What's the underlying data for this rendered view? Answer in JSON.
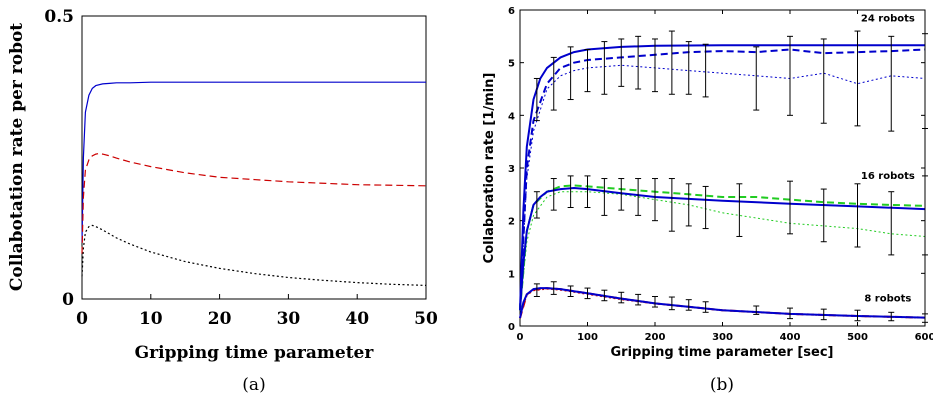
{
  "chart_data": [
    {
      "type": "line",
      "caption": "(a)",
      "xlabel": "Gripping time parameter",
      "ylabel": "Collabotation rate per robot",
      "xlim": [
        0,
        50
      ],
      "ylim": [
        0,
        0.5
      ],
      "xticks": [
        "0",
        "10",
        "20",
        "30",
        "40",
        "50"
      ],
      "yticks": [
        "0",
        "0.5"
      ],
      "grid": false,
      "series": [
        {
          "color": "#0000cc",
          "dash": "solid",
          "x": [
            0,
            0.2,
            0.5,
            1,
            1.5,
            2,
            3,
            4,
            5,
            7,
            10,
            20,
            30,
            40,
            50
          ],
          "y": [
            0.1,
            0.25,
            0.33,
            0.36,
            0.372,
            0.377,
            0.38,
            0.381,
            0.382,
            0.382,
            0.383,
            0.383,
            0.383,
            0.383,
            0.383
          ]
        },
        {
          "color": "#cc0000",
          "dash": "dashed",
          "x": [
            0,
            0.2,
            0.5,
            1,
            1.5,
            2,
            2.5,
            3,
            4,
            5,
            7,
            10,
            15,
            20,
            30,
            40,
            50
          ],
          "y": [
            0.08,
            0.18,
            0.228,
            0.246,
            0.253,
            0.256,
            0.257,
            0.256,
            0.253,
            0.249,
            0.242,
            0.234,
            0.223,
            0.215,
            0.207,
            0.202,
            0.2
          ]
        },
        {
          "color": "#000000",
          "dash": "dotted",
          "x": [
            0,
            0.2,
            0.5,
            1,
            1.5,
            2,
            3,
            4,
            5,
            7,
            10,
            15,
            20,
            25,
            30,
            35,
            40,
            45,
            50
          ],
          "y": [
            0.04,
            0.09,
            0.118,
            0.128,
            0.13,
            0.128,
            0.122,
            0.115,
            0.108,
            0.097,
            0.083,
            0.066,
            0.054,
            0.045,
            0.038,
            0.033,
            0.029,
            0.026,
            0.024
          ]
        }
      ]
    },
    {
      "type": "line",
      "caption": "(b)",
      "xlabel": "Gripping time parameter [sec]",
      "ylabel": "Collaboration rate [1/min]",
      "xlim": [
        0,
        600
      ],
      "ylim": [
        0,
        6
      ],
      "xticks": [
        "0",
        "100",
        "200",
        "300",
        "400",
        "500",
        "600"
      ],
      "yticks": [
        "0",
        "1",
        "2",
        "3",
        "4",
        "5",
        "6"
      ],
      "grid": false,
      "annotations": [
        "24 robots",
        "16 robots",
        "8 robots"
      ],
      "groups": [
        {
          "label": "24 robots",
          "model": {
            "color": "#0000cc",
            "x": [
              0,
              5,
              10,
              20,
              30,
              40,
              60,
              80,
              100,
              150,
              200,
              300,
              400,
              500,
              600
            ],
            "y": [
              0.3,
              2.2,
              3.4,
              4.3,
              4.7,
              4.9,
              5.1,
              5.2,
              5.25,
              5.3,
              5.32,
              5.33,
              5.33,
              5.33,
              5.33
            ]
          },
          "dashed": {
            "color": "#0000cc",
            "x": [
              0,
              10,
              20,
              40,
              60,
              80,
              100,
              150,
              200,
              250,
              300,
              350,
              400,
              450,
              500,
              550,
              600
            ],
            "y": [
              0.3,
              3.0,
              3.9,
              4.6,
              4.9,
              5.0,
              5.05,
              5.1,
              5.15,
              5.2,
              5.22,
              5.2,
              5.25,
              5.18,
              5.2,
              5.22,
              5.25
            ]
          },
          "dotted": {
            "color": "#0000cc",
            "x": [
              0,
              10,
              20,
              40,
              60,
              80,
              100,
              150,
              200,
              250,
              300,
              350,
              400,
              450,
              500,
              550,
              600
            ],
            "y": [
              0.3,
              2.8,
              3.7,
              4.5,
              4.75,
              4.85,
              4.9,
              4.95,
              4.9,
              4.85,
              4.8,
              4.75,
              4.7,
              4.8,
              4.6,
              4.75,
              4.7
            ]
          },
          "errorbars": {
            "x": [
              25,
              50,
              75,
              100,
              125,
              150,
              175,
              200,
              225,
              250,
              275,
              350,
              400,
              450,
              500,
              550,
              600
            ],
            "y": [
              4.3,
              4.6,
              4.8,
              4.85,
              4.9,
              5.0,
              5.0,
              4.95,
              5.0,
              4.9,
              4.85,
              4.7,
              4.75,
              4.65,
              4.7,
              4.6,
              4.65
            ],
            "err": [
              0.4,
              0.5,
              0.5,
              0.4,
              0.5,
              0.45,
              0.5,
              0.5,
              0.6,
              0.5,
              0.5,
              0.6,
              0.75,
              0.8,
              0.9,
              0.9,
              0.9
            ]
          }
        },
        {
          "label": "16 robots",
          "model": {
            "color": "#0000cc",
            "x": [
              0,
              5,
              10,
              20,
              30,
              40,
              60,
              80,
              100,
              150,
              200,
              300,
              400,
              500,
              600
            ],
            "y": [
              0.3,
              1.2,
              1.8,
              2.3,
              2.45,
              2.55,
              2.6,
              2.62,
              2.6,
              2.52,
              2.45,
              2.38,
              2.32,
              2.27,
              2.22
            ]
          },
          "dashed": {
            "color": "#22cc22",
            "x": [
              0,
              10,
              20,
              40,
              60,
              80,
              100,
              150,
              200,
              250,
              300,
              350,
              400,
              450,
              500,
              550,
              600
            ],
            "y": [
              0.3,
              1.8,
              2.3,
              2.55,
              2.65,
              2.67,
              2.65,
              2.6,
              2.55,
              2.5,
              2.45,
              2.45,
              2.4,
              2.35,
              2.32,
              2.3,
              2.28
            ]
          },
          "dotted": {
            "color": "#22cc22",
            "x": [
              0,
              10,
              20,
              40,
              60,
              80,
              100,
              150,
              200,
              250,
              300,
              350,
              400,
              450,
              500,
              550,
              600
            ],
            "y": [
              0.3,
              1.6,
              2.1,
              2.45,
              2.55,
              2.55,
              2.55,
              2.5,
              2.4,
              2.3,
              2.15,
              2.05,
              1.95,
              1.9,
              1.85,
              1.75,
              1.7
            ]
          },
          "errorbars": {
            "x": [
              25,
              50,
              75,
              100,
              125,
              150,
              175,
              200,
              225,
              250,
              275,
              325,
              400,
              450,
              500,
              550,
              600
            ],
            "y": [
              2.3,
              2.5,
              2.55,
              2.55,
              2.45,
              2.5,
              2.45,
              2.4,
              2.3,
              2.3,
              2.25,
              2.2,
              2.25,
              2.1,
              2.1,
              1.95,
              2.1
            ],
            "err": [
              0.25,
              0.3,
              0.3,
              0.3,
              0.35,
              0.3,
              0.35,
              0.4,
              0.5,
              0.4,
              0.4,
              0.5,
              0.5,
              0.5,
              0.6,
              0.6,
              0.75
            ]
          }
        },
        {
          "label": "8 robots",
          "model": {
            "color": "#0000cc",
            "x": [
              0,
              5,
              10,
              20,
              30,
              40,
              60,
              80,
              100,
              150,
              200,
              300,
              400,
              500,
              600
            ],
            "y": [
              0.15,
              0.45,
              0.6,
              0.7,
              0.72,
              0.72,
              0.7,
              0.66,
              0.62,
              0.52,
              0.43,
              0.3,
              0.23,
              0.19,
              0.16
            ]
          },
          "dashed": {
            "color": "#cc0000",
            "x": [
              0,
              10,
              20,
              40,
              60,
              80,
              100,
              150,
              200,
              300,
              400,
              500,
              600
            ],
            "y": [
              0.15,
              0.6,
              0.69,
              0.72,
              0.7,
              0.66,
              0.62,
              0.52,
              0.43,
              0.3,
              0.23,
              0.19,
              0.16
            ]
          },
          "dotted": {
            "color": "#cc0000",
            "x": [
              0,
              10,
              20,
              40,
              60,
              80,
              100,
              150,
              200,
              300,
              400,
              500,
              600
            ],
            "y": [
              0.15,
              0.58,
              0.67,
              0.7,
              0.68,
              0.64,
              0.6,
              0.5,
              0.42,
              0.29,
              0.22,
              0.18,
              0.15
            ]
          },
          "errorbars": {
            "x": [
              25,
              50,
              75,
              100,
              125,
              150,
              175,
              200,
              225,
              250,
              275,
              350,
              400,
              450,
              500,
              550,
              600
            ],
            "y": [
              0.68,
              0.72,
              0.66,
              0.62,
              0.58,
              0.54,
              0.5,
              0.46,
              0.43,
              0.4,
              0.36,
              0.3,
              0.24,
              0.22,
              0.2,
              0.18,
              0.15
            ],
            "err": [
              0.12,
              0.12,
              0.1,
              0.1,
              0.1,
              0.1,
              0.1,
              0.1,
              0.12,
              0.1,
              0.1,
              0.08,
              0.1,
              0.1,
              0.1,
              0.08,
              0.08
            ]
          }
        }
      ]
    }
  ]
}
